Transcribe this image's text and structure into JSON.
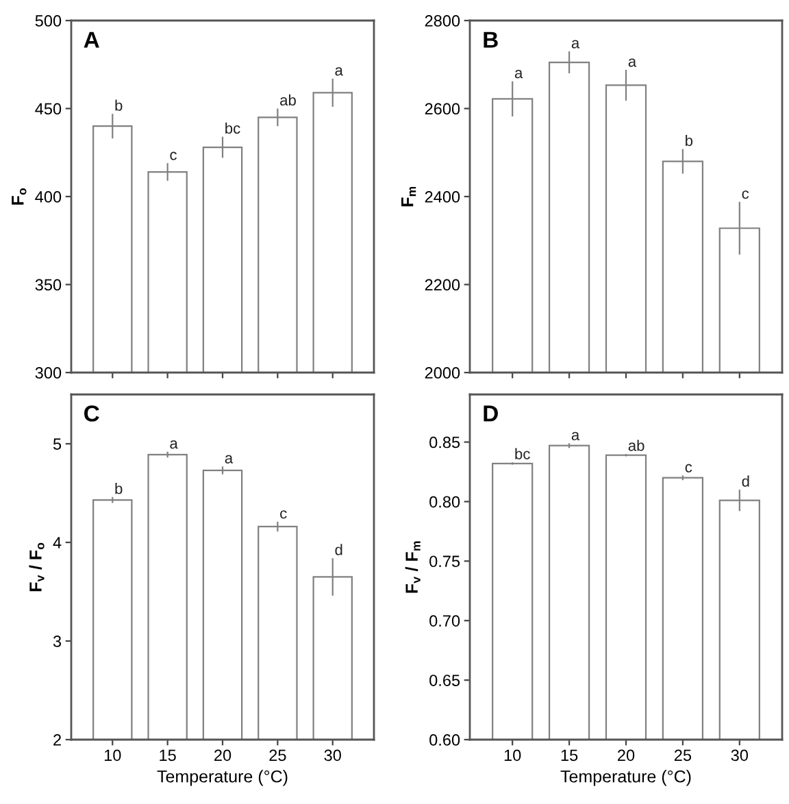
{
  "chart_data": [
    {
      "type": "bar",
      "annotations": [
        "A"
      ],
      "ylabel": "F$_{o}$",
      "categories": [
        "10",
        "15",
        "20",
        "25",
        "30"
      ],
      "tick_labels": "y",
      "values": [
        440,
        414,
        428,
        445,
        459
      ],
      "errors": [
        7,
        5,
        6,
        5,
        8
      ],
      "value_labels": [
        "b",
        "c",
        "bc",
        "ab",
        "a"
      ],
      "color": "#ffffff",
      "ylim": [
        300,
        500
      ],
      "yticks": [
        300,
        350,
        400,
        450,
        500
      ],
      "grid": false,
      "legend": false
    },
    {
      "type": "bar",
      "annotations": [
        "B"
      ],
      "ylabel": "F$_{m}$",
      "categories": [
        "10",
        "15",
        "20",
        "25",
        "30"
      ],
      "tick_labels": "y",
      "values": [
        2622,
        2705,
        2653,
        2480,
        2328
      ],
      "errors": [
        40,
        25,
        35,
        28,
        60
      ],
      "value_labels": [
        "a",
        "a",
        "a",
        "b",
        "c"
      ],
      "color": "#ffffff",
      "ylim": [
        2000,
        2800
      ],
      "yticks": [
        2000,
        2200,
        2400,
        2600,
        2800
      ],
      "grid": false,
      "legend": false
    },
    {
      "type": "bar",
      "annotations": [
        "C"
      ],
      "xlabel": "Temperature (°C)",
      "ylabel": "F$_{v}$ / F$_{o}$",
      "categories": [
        "10",
        "15",
        "20",
        "25",
        "30"
      ],
      "values": [
        4.43,
        4.89,
        4.73,
        4.16,
        3.65
      ],
      "errors": [
        0.03,
        0.03,
        0.04,
        0.05,
        0.19
      ],
      "value_labels": [
        "b",
        "a",
        "a",
        "c",
        "d"
      ],
      "color": "#ffffff",
      "ylim": [
        2,
        5.5
      ],
      "yticks": [
        2,
        3,
        4,
        5
      ],
      "grid": false,
      "legend": false
    },
    {
      "type": "bar",
      "annotations": [
        "D"
      ],
      "xlabel": "Temperature (°C)",
      "ylabel": "F$_{v}$ / F$_{m}$",
      "categories": [
        "10",
        "15",
        "20",
        "25",
        "30"
      ],
      "values": [
        0.832,
        0.847,
        0.839,
        0.82,
        0.801
      ],
      "errors": [
        0.001,
        0.002,
        0.001,
        0.002,
        0.009
      ],
      "value_labels": [
        "bc",
        "a",
        "ab",
        "c",
        "d"
      ],
      "color": "#ffffff",
      "ylim": [
        0.6,
        0.89
      ],
      "yticks": [
        {
          "value": 0.6,
          "label": "0.60"
        },
        {
          "value": 0.65,
          "label": "0.65"
        },
        {
          "value": 0.7,
          "label": "0.70"
        },
        {
          "value": 0.75,
          "label": "0.75"
        },
        {
          "value": 0.8,
          "label": "0.80"
        },
        {
          "value": 0.85,
          "label": "0.85"
        }
      ],
      "grid": false,
      "legend": false
    }
  ]
}
